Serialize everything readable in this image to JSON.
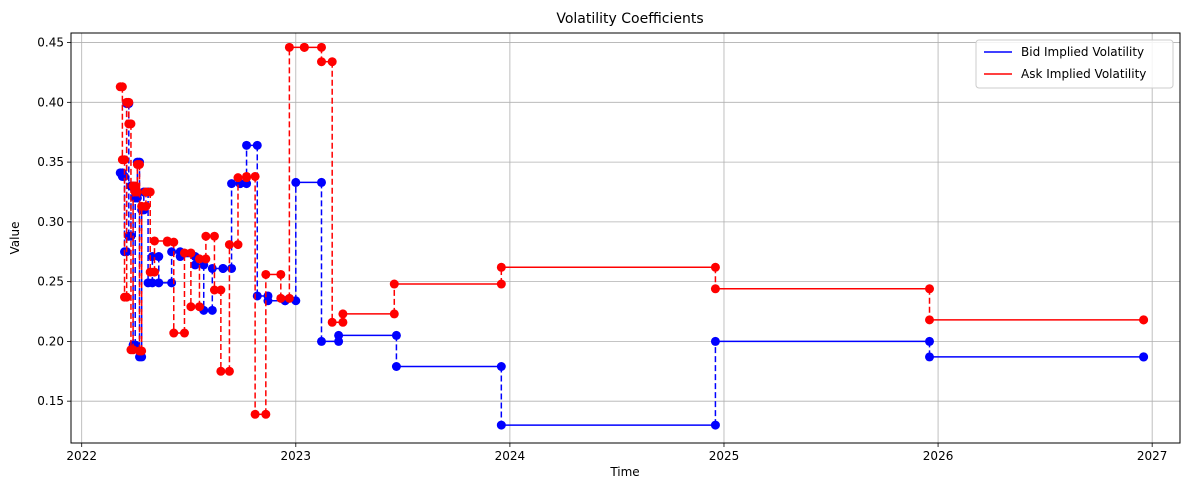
{
  "chart_data": {
    "type": "line",
    "title": "Volatility Coefficients",
    "xlabel": "Time",
    "ylabel": "Value",
    "xlim": [
      2021.95,
      2027.13
    ],
    "ylim": [
      0.115,
      0.458
    ],
    "x_ticks": [
      2022,
      2023,
      2024,
      2025,
      2026,
      2027
    ],
    "y_ticks": [
      0.15,
      0.2,
      0.25,
      0.3,
      0.35,
      0.4,
      0.45
    ],
    "grid": true,
    "legend_position": "top-right",
    "step_style": "post",
    "series": [
      {
        "name": "Bid Implied Volatility",
        "color": "#0000ff",
        "points": [
          [
            2022.18,
            0.341
          ],
          [
            2022.19,
            0.338
          ],
          [
            2022.2,
            0.275
          ],
          [
            2022.21,
            0.399
          ],
          [
            2022.22,
            0.288
          ],
          [
            2022.23,
            0.33
          ],
          [
            2022.24,
            0.197
          ],
          [
            2022.25,
            0.32
          ],
          [
            2022.26,
            0.35
          ],
          [
            2022.27,
            0.187
          ],
          [
            2022.28,
            0.31
          ],
          [
            2022.29,
            0.325
          ],
          [
            2022.31,
            0.249
          ],
          [
            2022.33,
            0.271
          ],
          [
            2022.36,
            0.249
          ],
          [
            2022.42,
            0.275
          ],
          [
            2022.46,
            0.271
          ],
          [
            2022.53,
            0.264
          ],
          [
            2022.57,
            0.226
          ],
          [
            2022.61,
            0.261
          ],
          [
            2022.66,
            0.261
          ],
          [
            2022.7,
            0.332
          ],
          [
            2022.74,
            0.332
          ],
          [
            2022.77,
            0.364
          ],
          [
            2022.82,
            0.238
          ],
          [
            2022.87,
            0.234
          ],
          [
            2022.95,
            0.234
          ],
          [
            2023.0,
            0.333
          ],
          [
            2023.12,
            0.2
          ],
          [
            2023.2,
            0.205
          ],
          [
            2023.47,
            0.179
          ],
          [
            2023.96,
            0.13
          ],
          [
            2024.96,
            0.2
          ],
          [
            2025.96,
            0.187
          ],
          [
            2026.96,
            0.187
          ]
        ]
      },
      {
        "name": "Ask Implied Volatility",
        "color": "#ff0000",
        "points": [
          [
            2022.18,
            0.413
          ],
          [
            2022.19,
            0.352
          ],
          [
            2022.2,
            0.237
          ],
          [
            2022.21,
            0.4
          ],
          [
            2022.22,
            0.382
          ],
          [
            2022.23,
            0.193
          ],
          [
            2022.24,
            0.33
          ],
          [
            2022.25,
            0.325
          ],
          [
            2022.26,
            0.348
          ],
          [
            2022.27,
            0.192
          ],
          [
            2022.28,
            0.313
          ],
          [
            2022.3,
            0.325
          ],
          [
            2022.32,
            0.258
          ],
          [
            2022.34,
            0.284
          ],
          [
            2022.4,
            0.283
          ],
          [
            2022.43,
            0.207
          ],
          [
            2022.48,
            0.274
          ],
          [
            2022.51,
            0.229
          ],
          [
            2022.55,
            0.269
          ],
          [
            2022.58,
            0.288
          ],
          [
            2022.62,
            0.243
          ],
          [
            2022.65,
            0.175
          ],
          [
            2022.69,
            0.281
          ],
          [
            2022.73,
            0.337
          ],
          [
            2022.77,
            0.338
          ],
          [
            2022.81,
            0.139
          ],
          [
            2022.86,
            0.256
          ],
          [
            2022.93,
            0.236
          ],
          [
            2022.97,
            0.446
          ],
          [
            2023.04,
            0.446
          ],
          [
            2023.12,
            0.434
          ],
          [
            2023.17,
            0.216
          ],
          [
            2023.22,
            0.223
          ],
          [
            2023.46,
            0.248
          ],
          [
            2023.96,
            0.262
          ],
          [
            2024.96,
            0.244
          ],
          [
            2025.96,
            0.218
          ],
          [
            2026.96,
            0.218
          ]
        ]
      }
    ]
  }
}
